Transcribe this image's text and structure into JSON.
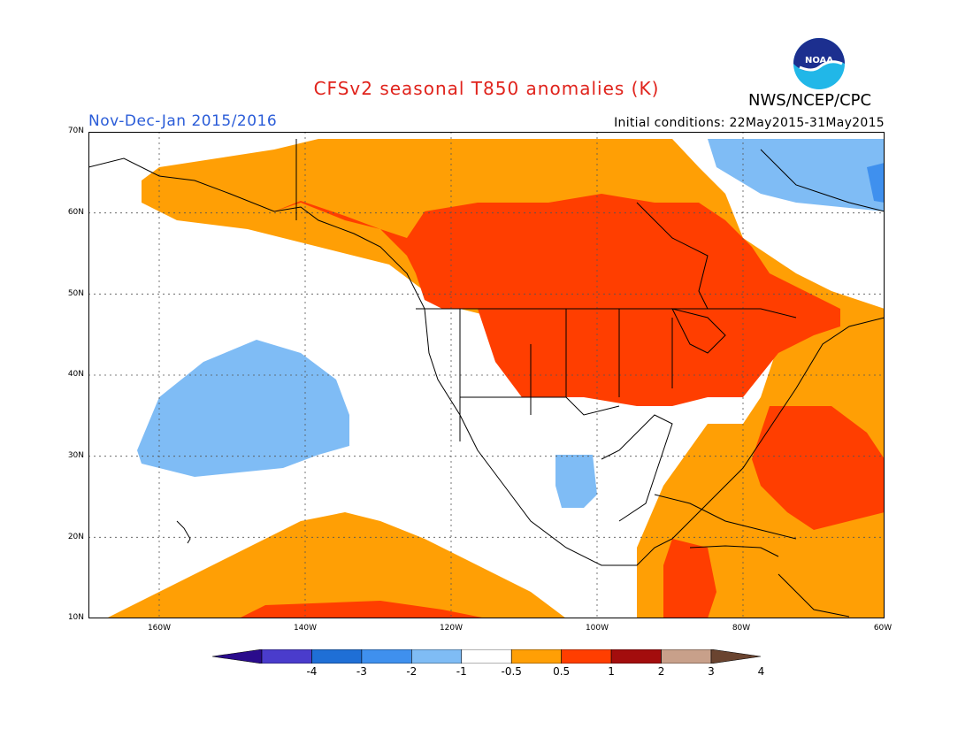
{
  "title": "CFSv2 seasonal T850 anomalies (K)",
  "subtitle": "Nov-Dec-Jan 2015/2016",
  "agency": "NWS/NCEP/CPC",
  "initial_conditions": "Initial conditions: 22May2015-31May2015",
  "logo_text": "NOAA",
  "colors": {
    "title": "#e0231c",
    "subtitle": "#2a5cd8"
  },
  "lat_labels": [
    "70N",
    "60N",
    "50N",
    "40N",
    "30N",
    "20N",
    "10N"
  ],
  "lon_labels": [
    "160W",
    "140W",
    "120W",
    "100W",
    "80W",
    "60W"
  ],
  "legend": {
    "labels": [
      "-4",
      "-3",
      "-2",
      "-1",
      "-0.5",
      "0.5",
      "1",
      "2",
      "3",
      "4"
    ],
    "colors": [
      "#2a0c8c",
      "#4a3ccc",
      "#1f6fd6",
      "#3f90ee",
      "#7fbcf5",
      "#ffffff",
      "#ff9f05",
      "#ff3e00",
      "#a30d0d",
      "#c8a08a",
      "#6a4430"
    ]
  }
}
